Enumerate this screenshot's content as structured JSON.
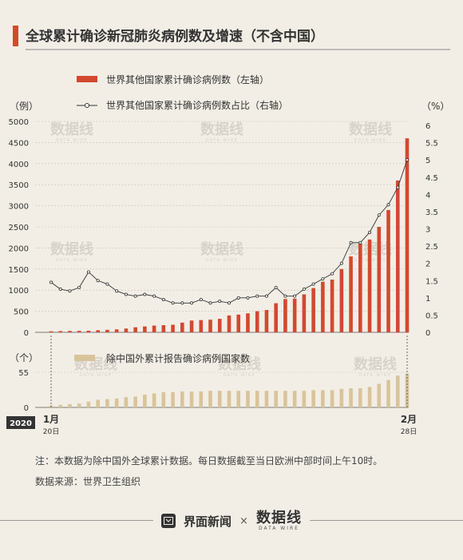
{
  "title": "全球累计确诊新冠肺炎病例数及增速（不含中国）",
  "colors": {
    "accent": "#d2492f",
    "bar_bottom": "#d9c49a",
    "text": "#333333",
    "background": "#f2eee6"
  },
  "chart_data": [
    {
      "type": "bar",
      "series": [
        {
          "name": "世界其他国家累计确诊病例数（左轴）",
          "axis": "left",
          "values": [
            25,
            30,
            33,
            35,
            38,
            50,
            60,
            70,
            90,
            120,
            140,
            160,
            170,
            180,
            230,
            280,
            290,
            300,
            320,
            400,
            420,
            450,
            500,
            530,
            690,
            790,
            800,
            900,
            1050,
            1200,
            1250,
            1500,
            1800,
            2100,
            2200,
            2500,
            2900,
            3600,
            4600
          ]
        },
        {
          "type": "line",
          "name": "世界其他国家累计确诊病例数占比（右轴）",
          "axis": "right",
          "values": [
            1.45,
            1.25,
            1.2,
            1.3,
            1.75,
            1.5,
            1.4,
            1.2,
            1.1,
            1.05,
            1.1,
            1.05,
            0.95,
            0.85,
            0.85,
            0.85,
            0.95,
            0.85,
            0.9,
            0.85,
            1.0,
            1.0,
            1.05,
            1.05,
            1.3,
            1.05,
            1.05,
            1.25,
            1.4,
            1.55,
            1.7,
            2.0,
            2.6,
            2.6,
            2.9,
            3.4,
            3.7,
            4.2,
            5.0
          ]
        }
      ],
      "y_left": {
        "unit": "（例）",
        "ticks": [
          "0",
          "500",
          "1000",
          "1500",
          "2000",
          "2500",
          "3000",
          "3500",
          "4000",
          "4500",
          "5000"
        ],
        "ylim": [
          0,
          5000
        ]
      },
      "y_right": {
        "unit": "（%）",
        "ticks": [
          "0",
          "0.5",
          "1",
          "1.5",
          "2",
          "2.5",
          "3",
          "3.5",
          "4",
          "4.5",
          "5",
          "5.5",
          "6"
        ],
        "ylim": [
          0,
          6
        ]
      },
      "legend": "top-center"
    },
    {
      "type": "bar",
      "series": [
        {
          "name": "除中国外累计报告确诊病例国家数",
          "values": [
            3,
            4,
            5,
            6,
            9,
            12,
            13,
            14,
            16,
            17,
            20,
            22,
            24,
            24,
            25,
            25,
            25,
            26,
            26,
            26,
            26,
            26,
            26,
            26,
            26,
            26,
            26,
            26,
            27,
            27,
            27,
            29,
            30,
            30,
            32,
            37,
            43,
            50,
            53
          ]
        }
      ],
      "y": {
        "unit": "（个）",
        "tick_labels": [
          "0",
          "55"
        ],
        "ylim": [
          0,
          55
        ]
      },
      "legend": "top-left"
    }
  ],
  "x_axis": {
    "year_badge": "2020",
    "start_month": "1月",
    "start_day": "20日",
    "end_month": "2月",
    "end_day": "28日"
  },
  "notes": {
    "note": "注：本数据为除中国外全球累计数据。每日数据截至当日欧洲中部时间上午10时。",
    "source": "数据来源：世界卫生组织"
  },
  "watermark": {
    "main": "数据线",
    "sub": "DATA WIRE"
  },
  "footer": {
    "brand": "界面新闻",
    "times": "×",
    "partner": "数据线",
    "partner_sub": "DATA WIRE"
  }
}
